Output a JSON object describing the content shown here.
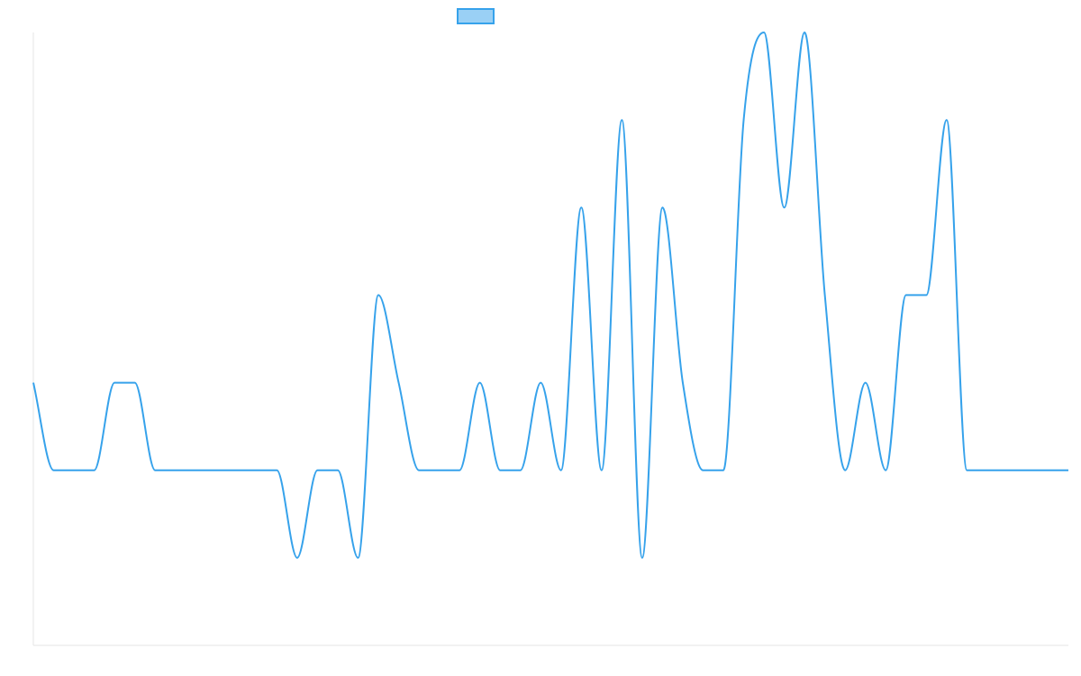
{
  "chart_data": {
    "type": "line",
    "title": "",
    "xlabel": "",
    "ylabel": "",
    "legend": {
      "placement": "top-center",
      "show_label": false
    },
    "grid": false,
    "ylim": [
      -1.0,
      2.5
    ],
    "x": [
      0,
      1,
      2,
      3,
      4,
      5,
      6,
      7,
      8,
      9,
      10,
      11,
      12,
      13,
      14,
      15,
      16,
      17,
      18,
      19,
      20,
      21,
      22,
      23,
      24,
      25,
      26,
      27,
      28,
      29,
      30,
      31,
      32,
      33,
      34,
      35,
      36,
      37,
      38,
      39,
      40,
      41,
      42,
      43,
      44,
      45,
      46,
      47,
      48,
      49,
      50,
      51
    ],
    "series": [
      {
        "values": [
          0.5,
          0,
          0,
          0,
          0.5,
          0.5,
          0,
          0,
          0,
          0,
          0,
          0,
          0,
          -0.5,
          0,
          0,
          -0.5,
          1,
          0.5,
          0,
          0,
          0,
          0.5,
          0,
          0,
          0.5,
          0,
          1.5,
          0,
          2,
          -0.5,
          1.5,
          0.5,
          0,
          0,
          2,
          2.5,
          1.5,
          2.5,
          1,
          0,
          0.5,
          0,
          1,
          1,
          2,
          0,
          0,
          0,
          0,
          0,
          0
        ],
        "color": "#36a2eb",
        "fill": "#9ad0f5"
      }
    ]
  }
}
